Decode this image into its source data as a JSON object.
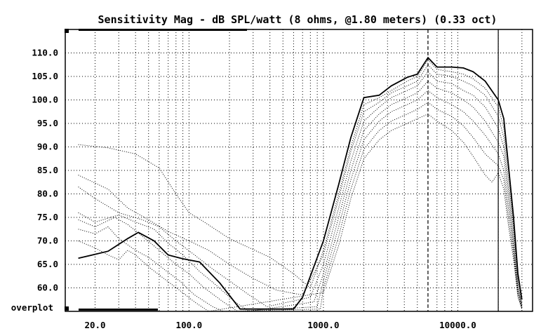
{
  "chart_data": {
    "type": "line",
    "title": "Sensitivity Mag - dB SPL/watt (8 ohms, @1.80 meters) (0.33 oct)",
    "xlabel": "",
    "ylabel": "",
    "x_scale": "log",
    "xlim": [
      12,
      36000
    ],
    "ylim": [
      55,
      115
    ],
    "grid": true,
    "y_ticks": [
      "110.0",
      "105.0",
      "100.0",
      "95.0",
      "90.0",
      "85.0",
      "80.0",
      "75.0",
      "70.0",
      "65.0",
      "60.0"
    ],
    "x_ticks": [
      {
        "label": "20.0",
        "value": 20
      },
      {
        "label": "100.0",
        "value": 100
      },
      {
        "label": "1000.0",
        "value": 1000
      },
      {
        "label": "10000.0",
        "value": 10000
      }
    ],
    "annotation": "overplot",
    "vertical_markers": [
      {
        "x": 6000,
        "style": "dashed"
      },
      {
        "x": 20000,
        "style": "solid"
      }
    ],
    "series": [
      {
        "style": "solid",
        "points": [
          [
            15,
            66.3
          ],
          [
            25,
            67.8
          ],
          [
            35,
            70.5
          ],
          [
            42,
            71.8
          ],
          [
            55,
            70.0
          ],
          [
            70,
            67.0
          ],
          [
            90,
            66.2
          ],
          [
            120,
            65.5
          ],
          [
            170,
            61.0
          ],
          [
            240,
            55.5
          ],
          [
            600,
            55.5
          ],
          [
            700,
            58.0
          ],
          [
            1000,
            70.0
          ],
          [
            1300,
            82.0
          ],
          [
            1600,
            92.0
          ],
          [
            2000,
            100.5
          ],
          [
            2600,
            101.0
          ],
          [
            3200,
            103.0
          ],
          [
            4200,
            104.8
          ],
          [
            5000,
            105.5
          ],
          [
            6000,
            109.0
          ],
          [
            7000,
            107.0
          ],
          [
            9000,
            107.0
          ],
          [
            11000,
            106.8
          ],
          [
            13000,
            106.0
          ],
          [
            16000,
            104.0
          ],
          [
            20000,
            100.0
          ],
          [
            22000,
            96.0
          ],
          [
            24000,
            85.0
          ],
          [
            26000,
            75.0
          ],
          [
            28000,
            63.0
          ],
          [
            30000,
            57.5
          ]
        ]
      },
      {
        "style": "dotted",
        "points": [
          [
            15,
            90.5
          ],
          [
            25,
            89.8
          ],
          [
            40,
            88.5
          ],
          [
            60,
            85.5
          ],
          [
            80,
            80.0
          ],
          [
            100,
            76.0
          ],
          [
            130,
            74.0
          ],
          [
            200,
            70.5
          ],
          [
            400,
            66.5
          ],
          [
            600,
            63.0
          ],
          [
            800,
            60.0
          ],
          [
            1000,
            68.0
          ],
          [
            1300,
            80.0
          ],
          [
            1600,
            90.0
          ],
          [
            2000,
            99.0
          ],
          [
            2600,
            100.5
          ],
          [
            3200,
            102.0
          ],
          [
            4200,
            104.0
          ],
          [
            5000,
            105.0
          ],
          [
            6000,
            108.5
          ],
          [
            7000,
            106.5
          ],
          [
            9000,
            106.0
          ],
          [
            11000,
            105.5
          ],
          [
            13000,
            104.5
          ],
          [
            16000,
            102.5
          ],
          [
            20000,
            98.5
          ],
          [
            22000,
            94.0
          ],
          [
            24000,
            84.0
          ],
          [
            26000,
            73.0
          ],
          [
            28000,
            62.0
          ],
          [
            30000,
            56.5
          ]
        ]
      },
      {
        "style": "dotted",
        "points": [
          [
            15,
            84.0
          ],
          [
            25,
            81.0
          ],
          [
            35,
            77.0
          ],
          [
            50,
            74.5
          ],
          [
            70,
            72.0
          ],
          [
            100,
            70.0
          ],
          [
            140,
            68.0
          ],
          [
            200,
            65.0
          ],
          [
            300,
            62.0
          ],
          [
            450,
            59.5
          ],
          [
            700,
            58.5
          ],
          [
            1000,
            67.0
          ],
          [
            1300,
            79.0
          ],
          [
            1600,
            89.0
          ],
          [
            2000,
            97.5
          ],
          [
            2600,
            99.5
          ],
          [
            3200,
            101.5
          ],
          [
            4200,
            103.0
          ],
          [
            5000,
            104.0
          ],
          [
            6000,
            107.5
          ],
          [
            7000,
            105.5
          ],
          [
            9000,
            105.0
          ],
          [
            11000,
            104.0
          ],
          [
            13000,
            103.0
          ],
          [
            16000,
            101.0
          ],
          [
            20000,
            96.5
          ],
          [
            22000,
            92.0
          ],
          [
            24000,
            82.0
          ],
          [
            26000,
            72.0
          ],
          [
            28000,
            61.0
          ],
          [
            30000,
            56.0
          ]
        ]
      },
      {
        "style": "dotted",
        "points": [
          [
            15,
            81.5
          ],
          [
            20,
            79.0
          ],
          [
            30,
            76.0
          ],
          [
            45,
            74.5
          ],
          [
            60,
            73.0
          ],
          [
            80,
            70.0
          ],
          [
            110,
            67.0
          ],
          [
            150,
            64.0
          ],
          [
            200,
            61.5
          ],
          [
            280,
            58.5
          ],
          [
            380,
            56.0
          ],
          [
            800,
            58.0
          ],
          [
            1000,
            65.0
          ],
          [
            1300,
            77.0
          ],
          [
            1600,
            87.0
          ],
          [
            2000,
            95.5
          ],
          [
            2600,
            98.5
          ],
          [
            3200,
            100.5
          ],
          [
            4200,
            102.0
          ],
          [
            5000,
            103.0
          ],
          [
            6000,
            106.0
          ],
          [
            7000,
            104.0
          ],
          [
            9000,
            103.5
          ],
          [
            11000,
            102.0
          ],
          [
            13000,
            101.0
          ],
          [
            16000,
            98.5
          ],
          [
            20000,
            94.0
          ],
          [
            22000,
            90.0
          ],
          [
            24000,
            80.0
          ],
          [
            26000,
            70.0
          ],
          [
            28000,
            60.0
          ],
          [
            30000,
            56.0
          ]
        ]
      },
      {
        "style": "dotted",
        "points": [
          [
            15,
            76.0
          ],
          [
            20,
            74.0
          ],
          [
            30,
            75.5
          ],
          [
            40,
            74.0
          ],
          [
            55,
            72.5
          ],
          [
            70,
            69.5
          ],
          [
            90,
            67.0
          ],
          [
            120,
            63.5
          ],
          [
            160,
            60.5
          ],
          [
            220,
            57.0
          ],
          [
            280,
            55.0
          ],
          [
            850,
            57.0
          ],
          [
            1000,
            63.0
          ],
          [
            1300,
            75.0
          ],
          [
            1600,
            85.0
          ],
          [
            2000,
            93.5
          ],
          [
            2600,
            97.0
          ],
          [
            3200,
            99.0
          ],
          [
            4200,
            100.5
          ],
          [
            5000,
            101.5
          ],
          [
            6000,
            104.0
          ],
          [
            7000,
            102.5
          ],
          [
            9000,
            101.5
          ],
          [
            11000,
            100.0
          ],
          [
            13000,
            98.5
          ],
          [
            16000,
            95.5
          ],
          [
            20000,
            91.0
          ],
          [
            22000,
            88.0
          ],
          [
            24000,
            78.0
          ],
          [
            26000,
            69.0
          ],
          [
            28000,
            59.5
          ],
          [
            30000,
            56.0
          ]
        ]
      },
      {
        "style": "dotted",
        "points": [
          [
            15,
            74.5
          ],
          [
            20,
            73.0
          ],
          [
            28,
            75.0
          ],
          [
            35,
            73.5
          ],
          [
            45,
            71.0
          ],
          [
            60,
            68.0
          ],
          [
            80,
            65.0
          ],
          [
            100,
            63.0
          ],
          [
            130,
            60.0
          ],
          [
            180,
            57.0
          ],
          [
            230,
            55.0
          ],
          [
            900,
            56.0
          ],
          [
            1000,
            61.5
          ],
          [
            1300,
            73.0
          ],
          [
            1600,
            83.0
          ],
          [
            2000,
            91.5
          ],
          [
            2600,
            95.5
          ],
          [
            3200,
            97.5
          ],
          [
            4200,
            99.0
          ],
          [
            5000,
            100.0
          ],
          [
            6000,
            102.0
          ],
          [
            7000,
            100.5
          ],
          [
            9000,
            99.0
          ],
          [
            11000,
            97.5
          ],
          [
            13000,
            95.5
          ],
          [
            16000,
            92.5
          ],
          [
            20000,
            88.5
          ],
          [
            22000,
            85.0
          ],
          [
            24000,
            76.0
          ],
          [
            26000,
            68.0
          ],
          [
            28000,
            59.0
          ],
          [
            30000,
            55.5
          ]
        ]
      },
      {
        "style": "dotted",
        "points": [
          [
            15,
            72.5
          ],
          [
            20,
            71.5
          ],
          [
            25,
            73.0
          ],
          [
            30,
            70.5
          ],
          [
            40,
            68.0
          ],
          [
            50,
            66.5
          ],
          [
            65,
            64.0
          ],
          [
            85,
            61.5
          ],
          [
            110,
            58.5
          ],
          [
            150,
            56.0
          ],
          [
            180,
            55.0
          ],
          [
            950,
            55.5
          ],
          [
            1000,
            60.0
          ],
          [
            1300,
            71.0
          ],
          [
            1600,
            81.0
          ],
          [
            2000,
            89.5
          ],
          [
            2600,
            93.5
          ],
          [
            3200,
            95.5
          ],
          [
            4200,
            97.0
          ],
          [
            5000,
            98.0
          ],
          [
            6000,
            99.5
          ],
          [
            7000,
            98.0
          ],
          [
            9000,
            96.5
          ],
          [
            11000,
            94.5
          ],
          [
            13000,
            92.0
          ],
          [
            16000,
            88.5
          ],
          [
            20000,
            86.0
          ],
          [
            22000,
            83.0
          ],
          [
            24000,
            74.0
          ],
          [
            26000,
            67.0
          ],
          [
            28000,
            58.5
          ],
          [
            30000,
            55.5
          ]
        ]
      },
      {
        "style": "dotted",
        "points": [
          [
            15,
            70.0
          ],
          [
            20,
            68.5
          ],
          [
            25,
            67.0
          ],
          [
            30,
            66.0
          ],
          [
            35,
            68.0
          ],
          [
            40,
            67.0
          ],
          [
            50,
            64.5
          ],
          [
            65,
            62.0
          ],
          [
            85,
            59.5
          ],
          [
            110,
            57.0
          ],
          [
            140,
            55.0
          ],
          [
            1000,
            59.0
          ],
          [
            1300,
            69.0
          ],
          [
            1600,
            79.0
          ],
          [
            2000,
            87.5
          ],
          [
            2600,
            91.5
          ],
          [
            3200,
            93.5
          ],
          [
            4200,
            95.0
          ],
          [
            5000,
            96.0
          ],
          [
            6000,
            97.0
          ],
          [
            7000,
            95.5
          ],
          [
            9000,
            93.5
          ],
          [
            11000,
            91.0
          ],
          [
            13000,
            88.0
          ],
          [
            16000,
            84.0
          ],
          [
            18000,
            82.5
          ],
          [
            20000,
            84.5
          ],
          [
            22000,
            81.0
          ],
          [
            24000,
            72.5
          ],
          [
            26000,
            66.0
          ],
          [
            28000,
            58.0
          ],
          [
            30000,
            55.5
          ]
        ]
      }
    ]
  }
}
